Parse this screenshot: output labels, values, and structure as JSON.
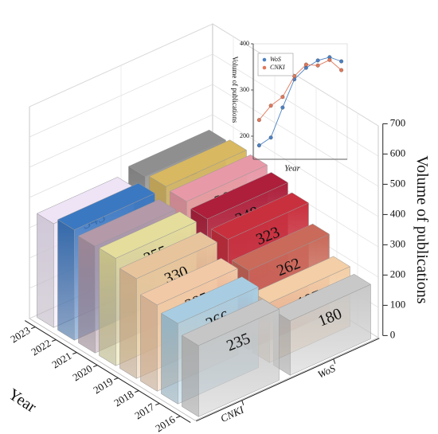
{
  "chart_data": [
    {
      "type": "bar3d",
      "categories": [
        "2016",
        "2017",
        "2018",
        "2019",
        "2020",
        "2021",
        "2022",
        "2023"
      ],
      "series": [
        {
          "name": "CNKI",
          "colors": [
            "#c6c6c6",
            "#a8cde2",
            "#f2c9a6",
            "#e8c49c",
            "#e4dd9c",
            "#b499a9",
            "#3b78c2",
            "#eee4f6"
          ],
          "values": [
            235,
            266,
            285,
            330,
            355,
            353,
            365,
            343
          ]
        },
        {
          "name": "WoS",
          "colors": [
            "#c8c8c8",
            "#f3cea6",
            "#c96a5a",
            "#c9303e",
            "#ad1f3b",
            "#e899a8",
            "#d8b860",
            "#8f8f8f"
          ],
          "values": [
            180,
            197,
            262,
            323,
            348,
            364,
            371,
            362
          ]
        }
      ],
      "xlabel": "Year",
      "zlabel": "Volume of publications",
      "zlim": [
        0,
        700
      ],
      "zticks": [
        0,
        100,
        200,
        300,
        400,
        500,
        600,
        700
      ],
      "grid": true
    },
    {
      "type": "line",
      "ylabel": "Volume of publications",
      "xlabel": "Year",
      "categories": [
        null,
        null,
        null,
        null,
        null,
        null,
        null,
        null
      ],
      "ylim": [
        150,
        400
      ],
      "yticks": [
        200,
        300,
        400
      ],
      "legend": "upper left",
      "series": [
        {
          "name": "WoS",
          "color": "#4a80c4",
          "values": [
            180,
            197,
            262,
            323,
            348,
            364,
            371,
            362
          ]
        },
        {
          "name": "CNKI",
          "color": "#e2785a",
          "values": [
            235,
            266,
            285,
            330,
            355,
            353,
            365,
            343
          ]
        }
      ]
    }
  ]
}
